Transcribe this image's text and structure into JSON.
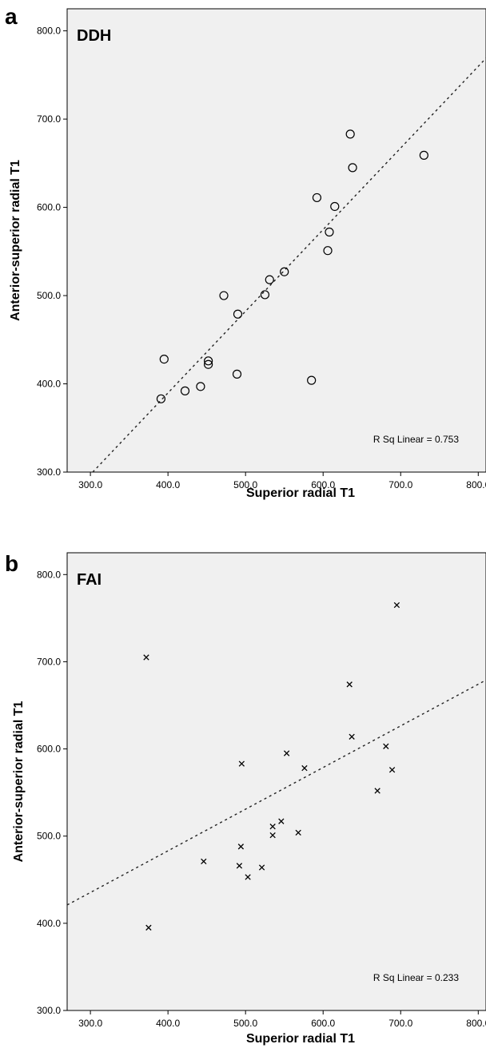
{
  "chart_data": [
    {
      "type": "scatter",
      "panel": "a",
      "title": "DDH",
      "xlabel": "Superior radial T1",
      "ylabel": "Anterior-superior radial T1",
      "xlim": [
        270,
        810
      ],
      "ylim": [
        300,
        825
      ],
      "xticks": [
        "300.0",
        "400.0",
        "500.0",
        "600.0",
        "700.0",
        "800.0"
      ],
      "yticks": [
        "300.0",
        "400.0",
        "500.0",
        "600.0",
        "700.0",
        "800.0"
      ],
      "marker": "circle",
      "annotation": "R Sq Linear = 0.753",
      "fit_line": {
        "x": [
          303,
          810
        ],
        "y": [
          300,
          769
        ]
      },
      "points": [
        {
          "x": 635,
          "y": 683
        },
        {
          "x": 730,
          "y": 659
        },
        {
          "x": 638,
          "y": 645
        },
        {
          "x": 592,
          "y": 611
        },
        {
          "x": 615,
          "y": 601
        },
        {
          "x": 608,
          "y": 572
        },
        {
          "x": 606,
          "y": 551
        },
        {
          "x": 550,
          "y": 527
        },
        {
          "x": 531,
          "y": 518
        },
        {
          "x": 525,
          "y": 501
        },
        {
          "x": 472,
          "y": 500
        },
        {
          "x": 490,
          "y": 479
        },
        {
          "x": 395,
          "y": 428
        },
        {
          "x": 452,
          "y": 426
        },
        {
          "x": 452,
          "y": 422
        },
        {
          "x": 489,
          "y": 411
        },
        {
          "x": 585,
          "y": 404
        },
        {
          "x": 442,
          "y": 397
        },
        {
          "x": 422,
          "y": 392
        },
        {
          "x": 391,
          "y": 383
        }
      ]
    },
    {
      "type": "scatter",
      "panel": "b",
      "title": "FAI",
      "xlabel": "Superior radial T1",
      "ylabel": "Anterior-superior radial T1",
      "xlim": [
        270,
        810
      ],
      "ylim": [
        300,
        825
      ],
      "xticks": [
        "300.0",
        "400.0",
        "500.0",
        "600.0",
        "700.0",
        "800.0"
      ],
      "yticks": [
        "300.0",
        "400.0",
        "500.0",
        "600.0",
        "700.0",
        "800.0"
      ],
      "marker": "x",
      "annotation": "R Sq Linear = 0.233",
      "fit_line": {
        "x": [
          270,
          810
        ],
        "y": [
          421,
          679
        ]
      },
      "points": [
        {
          "x": 695,
          "y": 765
        },
        {
          "x": 372,
          "y": 705
        },
        {
          "x": 634,
          "y": 674
        },
        {
          "x": 637,
          "y": 614
        },
        {
          "x": 681,
          "y": 603
        },
        {
          "x": 553,
          "y": 595
        },
        {
          "x": 495,
          "y": 583
        },
        {
          "x": 576,
          "y": 578
        },
        {
          "x": 689,
          "y": 576
        },
        {
          "x": 670,
          "y": 552
        },
        {
          "x": 546,
          "y": 517
        },
        {
          "x": 535,
          "y": 511
        },
        {
          "x": 568,
          "y": 504
        },
        {
          "x": 535,
          "y": 501
        },
        {
          "x": 494,
          "y": 488
        },
        {
          "x": 446,
          "y": 471
        },
        {
          "x": 492,
          "y": 466
        },
        {
          "x": 521,
          "y": 464
        },
        {
          "x": 503,
          "y": 453
        },
        {
          "x": 375,
          "y": 395
        }
      ]
    }
  ]
}
